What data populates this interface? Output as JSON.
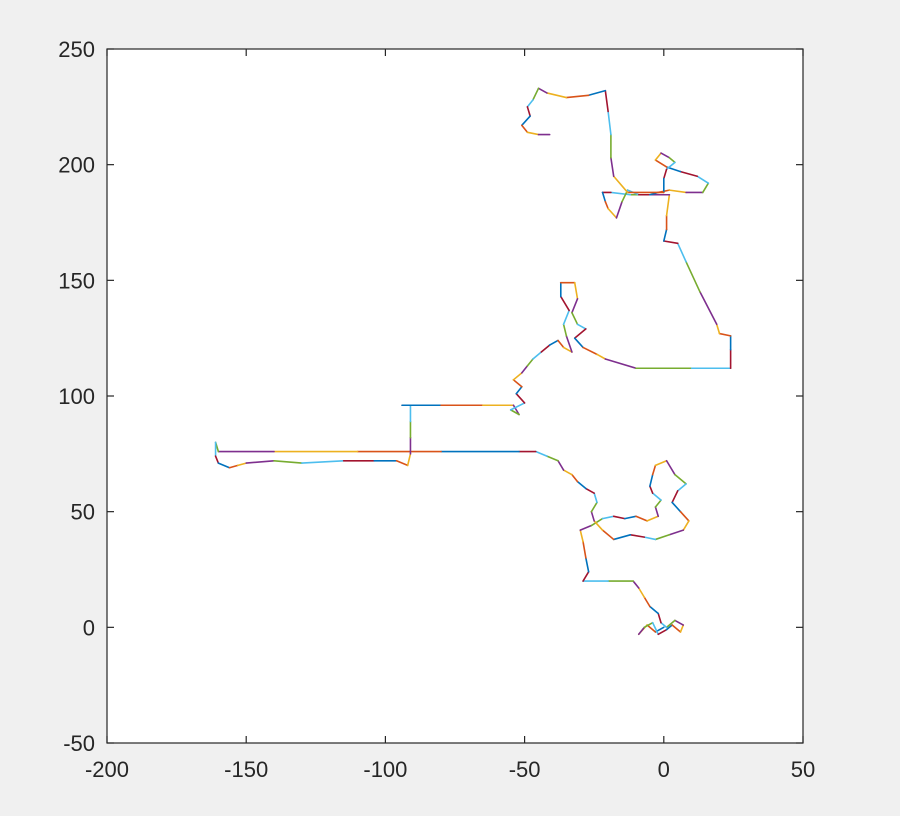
{
  "chart_data": {
    "type": "line",
    "title": "",
    "xlabel": "",
    "ylabel": "",
    "xlim": [
      -200,
      50
    ],
    "ylim": [
      -50,
      250
    ],
    "grid": false,
    "legend": "none",
    "x_ticks": [
      "-200",
      "-150",
      "-100",
      "-50",
      "0",
      "50"
    ],
    "y_ticks": [
      "-50",
      "0",
      "50",
      "100",
      "150",
      "200",
      "250"
    ],
    "x_tick_values": [
      -200,
      -150,
      -100,
      -50,
      0,
      50
    ],
    "y_tick_values": [
      -50,
      0,
      50,
      100,
      150,
      200,
      250
    ],
    "colors": [
      "#0072BD",
      "#D95319",
      "#EDB120",
      "#7E2F8E",
      "#77AC30",
      "#4DBEEE",
      "#A2142F"
    ],
    "path": [
      [
        0,
        0
      ],
      [
        -3,
        -2
      ],
      [
        -6,
        1
      ],
      [
        -9,
        -3
      ],
      [
        -7,
        0
      ],
      [
        -4,
        2
      ],
      [
        -2,
        -3
      ],
      [
        1,
        -1
      ],
      [
        3,
        1
      ],
      [
        6,
        -2
      ],
      [
        7,
        1
      ],
      [
        4,
        3
      ],
      [
        1,
        0
      ],
      [
        -1,
        2
      ],
      [
        -2,
        6
      ],
      [
        -5,
        9
      ],
      [
        -7,
        13
      ],
      [
        -9,
        17
      ],
      [
        -11,
        20
      ],
      [
        -20,
        20
      ],
      [
        -29,
        20
      ],
      [
        -27,
        24
      ],
      [
        -28,
        30
      ],
      [
        -29,
        37
      ],
      [
        -30,
        42
      ],
      [
        -26,
        44
      ],
      [
        -22,
        47
      ],
      [
        -18,
        48
      ],
      [
        -14,
        47
      ],
      [
        -10,
        48
      ],
      [
        -6,
        46
      ],
      [
        -2,
        48
      ],
      [
        -3,
        52
      ],
      [
        -1,
        55
      ],
      [
        -4,
        58
      ],
      [
        -5,
        61
      ],
      [
        -4,
        66
      ],
      [
        -3,
        70
      ],
      [
        1,
        72
      ],
      [
        4,
        66
      ],
      [
        8,
        62
      ],
      [
        5,
        59
      ],
      [
        3,
        54
      ],
      [
        6,
        50
      ],
      [
        9,
        46
      ],
      [
        7,
        42
      ],
      [
        2,
        40
      ],
      [
        -3,
        38
      ],
      [
        -7,
        39
      ],
      [
        -12,
        40
      ],
      [
        -18,
        38
      ],
      [
        -22,
        42
      ],
      [
        -25,
        46
      ],
      [
        -26,
        50
      ],
      [
        -24,
        54
      ],
      [
        -25,
        58
      ],
      [
        -28,
        60
      ],
      [
        -31,
        63
      ],
      [
        -33,
        66
      ],
      [
        -36,
        68
      ],
      [
        -38,
        72
      ],
      [
        -42,
        74
      ],
      [
        -46,
        76
      ],
      [
        -52,
        76
      ],
      [
        -80,
        76
      ],
      [
        -110,
        76
      ],
      [
        -140,
        76
      ],
      [
        -160,
        76
      ],
      [
        -161,
        80
      ],
      [
        -161,
        74
      ],
      [
        -160,
        71
      ],
      [
        -156,
        69
      ],
      [
        -153,
        70
      ],
      [
        -150,
        71
      ],
      [
        -140,
        72
      ],
      [
        -130,
        71
      ],
      [
        -115,
        72
      ],
      [
        -104,
        72
      ],
      [
        -96,
        72
      ],
      [
        -92,
        70
      ],
      [
        -91,
        75
      ],
      [
        -91,
        82
      ],
      [
        -91,
        89
      ],
      [
        -91,
        96
      ],
      [
        -94,
        96
      ],
      [
        -80,
        96
      ],
      [
        -65,
        96
      ],
      [
        -54,
        96
      ],
      [
        -52,
        92
      ],
      [
        -55,
        94
      ],
      [
        -50,
        97
      ],
      [
        -53,
        101
      ],
      [
        -51,
        104
      ],
      [
        -54,
        107
      ],
      [
        -51,
        110
      ],
      [
        -49,
        113
      ],
      [
        -47,
        116
      ],
      [
        -44,
        119
      ],
      [
        -41,
        122
      ],
      [
        -38,
        124
      ],
      [
        -36,
        121
      ],
      [
        -33,
        119
      ],
      [
        -35,
        126
      ],
      [
        -36,
        131
      ],
      [
        -34,
        137
      ],
      [
        -37,
        143
      ],
      [
        -37,
        149
      ],
      [
        -32,
        149
      ],
      [
        -31,
        142
      ],
      [
        -33,
        136
      ],
      [
        -31,
        131
      ],
      [
        -28,
        129
      ],
      [
        -32,
        125
      ],
      [
        -29,
        121
      ],
      [
        -24,
        118
      ],
      [
        -21,
        116
      ],
      [
        -10,
        112
      ],
      [
        10,
        112
      ],
      [
        24,
        112
      ],
      [
        24,
        120
      ],
      [
        24,
        126
      ],
      [
        20,
        127
      ],
      [
        19,
        131
      ],
      [
        13,
        145
      ],
      [
        8,
        158
      ],
      [
        5,
        166
      ],
      [
        0,
        167
      ],
      [
        1,
        172
      ],
      [
        1,
        178
      ],
      [
        2,
        187
      ],
      [
        -5,
        187
      ],
      [
        -12,
        187
      ],
      [
        -19,
        188
      ],
      [
        -22,
        188
      ],
      [
        -21,
        184
      ],
      [
        -20,
        181
      ],
      [
        -17,
        177
      ],
      [
        -15,
        184
      ],
      [
        -13,
        189
      ],
      [
        -9,
        187
      ],
      [
        -5,
        187
      ],
      [
        -2,
        188
      ],
      [
        2,
        189
      ],
      [
        8,
        188
      ],
      [
        14,
        188
      ],
      [
        16,
        192
      ],
      [
        12,
        195
      ],
      [
        6,
        197
      ],
      [
        1,
        199
      ],
      [
        -3,
        202
      ],
      [
        -1,
        205
      ],
      [
        2,
        203
      ],
      [
        4,
        201
      ],
      [
        1,
        198
      ],
      [
        0,
        194
      ],
      [
        0,
        188
      ],
      [
        -13,
        188
      ],
      [
        -18,
        195
      ],
      [
        -19,
        203
      ],
      [
        -19,
        213
      ],
      [
        -20,
        223
      ],
      [
        -21,
        232
      ],
      [
        -27,
        230
      ],
      [
        -35,
        229
      ],
      [
        -42,
        231
      ],
      [
        -45,
        233
      ],
      [
        -47,
        228
      ],
      [
        -49,
        225
      ],
      [
        -48,
        221
      ],
      [
        -51,
        217
      ],
      [
        -49,
        214
      ],
      [
        -45,
        213
      ],
      [
        -41,
        213
      ]
    ]
  }
}
